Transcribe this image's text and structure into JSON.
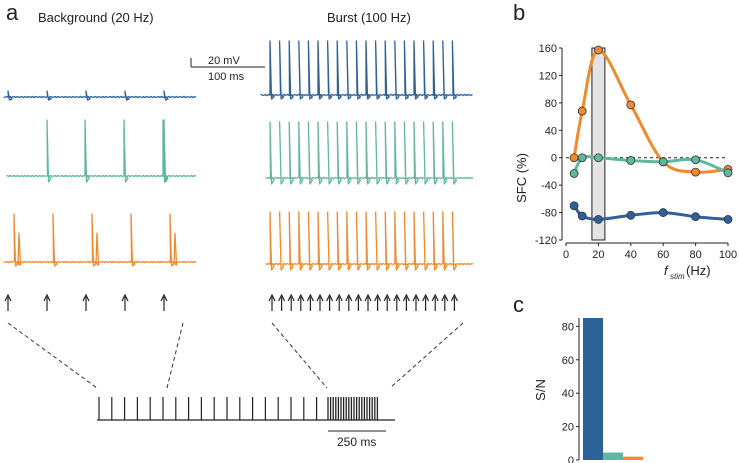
{
  "panel_a": {
    "label": "a",
    "background_title": "Background (20 Hz)",
    "burst_title": "Burst (100 Hz)",
    "scale_voltage": "20 mV",
    "scale_time": "100 ms",
    "bottom_scale": "250 ms",
    "background_spike_count": 5,
    "burst_spike_count": 20,
    "train_background_bars": 18,
    "train_burst_bars": 20
  },
  "panel_b": {
    "label": "b",
    "ylabel": "SFC (%)",
    "xlabel_main": "f",
    "xlabel_sub": "stim",
    "xlabel_unit": "(Hz)"
  },
  "panel_c": {
    "label": "c",
    "ylabel": "S/N"
  },
  "colors": {
    "blue": "#2d6199",
    "teal": "#5fb7a0",
    "orange": "#ef8a2e",
    "ink": "#222222"
  },
  "chart_data": [
    {
      "type": "line",
      "panel": "b",
      "ylabel": "SFC (%)",
      "xlabel": "f_stim (Hz)",
      "xlim": [
        0,
        100
      ],
      "ylim": [
        -120,
        160
      ],
      "x_ticks": [
        0,
        20,
        40,
        60,
        80,
        100
      ],
      "y_ticks": [
        -120,
        -80,
        -40,
        0,
        40,
        80,
        120,
        160
      ],
      "highlight_band": [
        16,
        24
      ],
      "reference_line": 0,
      "series": [
        {
          "name": "orange",
          "color": "#ef8a2e",
          "x": [
            5,
            10,
            20,
            40,
            60,
            80,
            100
          ],
          "y": [
            0,
            68,
            157,
            77,
            -6,
            -21,
            -17
          ]
        },
        {
          "name": "teal",
          "color": "#5fb7a0",
          "x": [
            5,
            10,
            20,
            40,
            60,
            80,
            100
          ],
          "y": [
            -23,
            0,
            0,
            -4,
            -6,
            -3,
            -22
          ]
        },
        {
          "name": "blue",
          "color": "#2d6199",
          "x": [
            5,
            10,
            20,
            40,
            60,
            80,
            100
          ],
          "y": [
            -70,
            -85,
            -90,
            -84,
            -80,
            -86,
            -90
          ]
        }
      ]
    },
    {
      "type": "bar",
      "panel": "c",
      "ylabel": "S/N",
      "ylim": [
        0,
        85
      ],
      "y_ticks": [
        0,
        20,
        40,
        60,
        80
      ],
      "categories": [
        "blue",
        "teal",
        "orange"
      ],
      "values": [
        85,
        4.5,
        2
      ],
      "colors": [
        "#2d6199",
        "#5fb7a0",
        "#ef8a2e"
      ]
    }
  ]
}
